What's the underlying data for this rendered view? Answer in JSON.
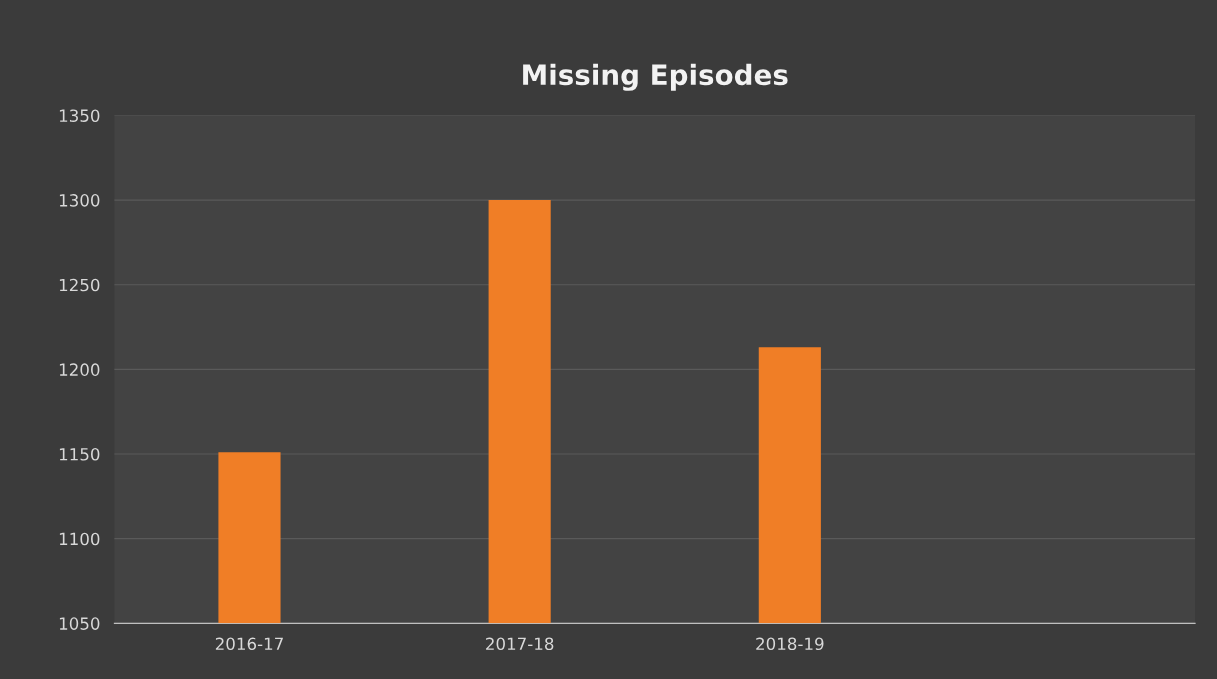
{
  "chart_data": {
    "type": "bar",
    "title": "Missing Episodes",
    "categories": [
      "2016-17",
      "2017-18",
      "2018-19",
      null
    ],
    "values": [
      1151,
      1300,
      1213,
      null
    ],
    "color": "#f07e26",
    "ylim": [
      1050,
      1350
    ],
    "yticks": [
      1050,
      1100,
      1150,
      1200,
      1250,
      1300,
      1350
    ],
    "grid": "y"
  }
}
